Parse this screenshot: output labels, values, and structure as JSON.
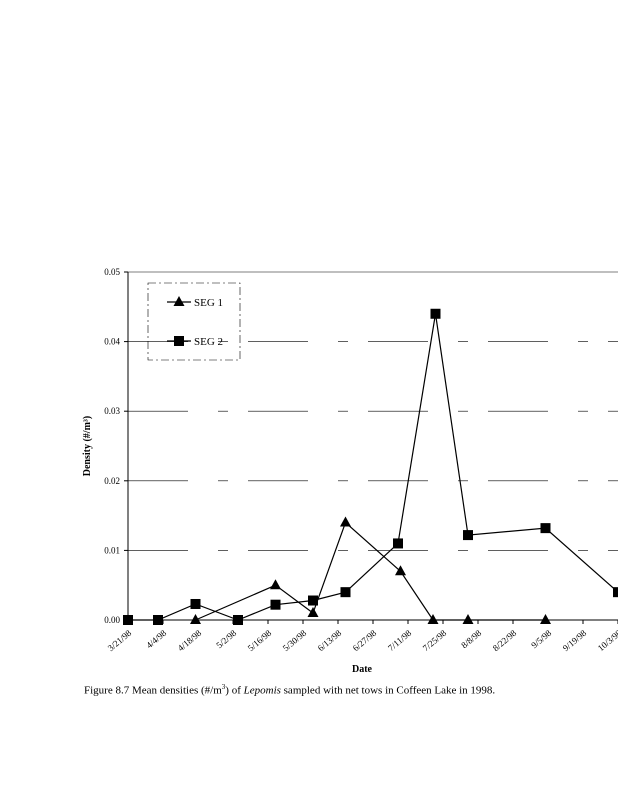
{
  "chart_data": {
    "type": "line",
    "title": "",
    "xlabel": "Date",
    "ylabel": "Density (#/m³)",
    "ylim": [
      0,
      0.05
    ],
    "yticks": [
      "0.00",
      "0.01",
      "0.02",
      "0.03",
      "0.04",
      "0.05"
    ],
    "x_unit": "days since 3/21/98",
    "xlim": [
      0,
      196
    ],
    "xtick_labels": [
      "3/21/98",
      "4/4/98",
      "4/18/98",
      "5/2/98",
      "5/16/98",
      "5/30/98",
      "6/13/98",
      "6/27/98",
      "7/11/98",
      "7/25/98",
      "8/8/98",
      "8/22/98",
      "9/5/98",
      "9/19/98",
      "10/3/98"
    ],
    "legend_position": "top-left",
    "series": [
      {
        "name": "SEG 1",
        "marker": "triangle",
        "x": [
          27,
          59,
          74,
          87,
          109,
          122,
          136,
          167
        ],
        "y": [
          0.0,
          0.005,
          0.001,
          0.014,
          0.007,
          0.0,
          0.0,
          0.0
        ]
      },
      {
        "name": "SEG 2",
        "marker": "square",
        "x": [
          0,
          12,
          27,
          44,
          59,
          74,
          87,
          108,
          123,
          136,
          167,
          196
        ],
        "y": [
          0.0,
          0.0,
          0.0023,
          0.0,
          0.0022,
          0.0028,
          0.004,
          0.011,
          0.044,
          0.0122,
          0.0132,
          0.004
        ]
      }
    ]
  },
  "caption": {
    "prefix": "Figure 8.7   Mean densities (#/m",
    "sup": "3",
    "middle": ") of ",
    "taxon": "Lepomis",
    "suffix": " sampled with net tows in Coffeen Lake in 1998."
  }
}
